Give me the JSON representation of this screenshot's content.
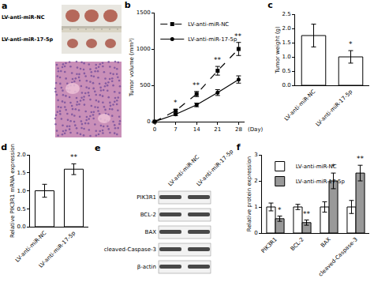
{
  "chart_data": [
    {
      "title": "b",
      "type": "line",
      "x": [
        0,
        7,
        14,
        21,
        28
      ],
      "xlabel": "(Day)",
      "ylabel": "Tumor volume (mm³)",
      "xlim": [
        0,
        30
      ],
      "xticks": [
        0,
        7,
        14,
        21,
        28
      ],
      "ylim": [
        0,
        1500
      ],
      "yticks": [
        0,
        500,
        1000,
        1500
      ],
      "legend": "top left",
      "series": [
        {
          "name": "LV-anti-miR-NC",
          "color": "#000000",
          "line_style": "dash",
          "marker": "square",
          "values": [
            0,
            150,
            380,
            700,
            1000
          ],
          "errors": [
            0,
            20,
            35,
            60,
            90
          ]
        },
        {
          "name": "LV-anti-miR-17-5p",
          "color": "#000000",
          "line_style": "solid",
          "marker": "circle",
          "values": [
            0,
            100,
            230,
            400,
            580
          ],
          "errors": [
            0,
            15,
            25,
            40,
            50
          ]
        }
      ],
      "annotations": [
        {
          "x": 7,
          "text": "*"
        },
        {
          "x": 14,
          "text": "**"
        },
        {
          "x": 21,
          "text": "**"
        },
        {
          "x": 28,
          "text": "**"
        }
      ]
    },
    {
      "title": "c",
      "type": "bar",
      "categories": [
        "LV-anti-miR-NC",
        "LV-anti-miR-17-5p"
      ],
      "values": [
        1.75,
        1.0
      ],
      "errors": [
        0.4,
        0.22
      ],
      "color": "#ffffff",
      "ylabel": "Tumor weight (g)",
      "ylim": [
        0,
        2.5
      ],
      "yticks": [
        {
          "value": 0,
          "label": "0.0"
        },
        {
          "value": 0.5,
          "label": "0.5"
        },
        {
          "value": 1,
          "label": "1.0"
        },
        {
          "value": 1.5,
          "label": "1.5"
        },
        {
          "value": 2,
          "label": "2.0"
        },
        {
          "value": 2.5,
          "label": "2.5"
        }
      ],
      "annotations": [
        {
          "x": "LV-anti-miR-17-5p",
          "text": "*"
        }
      ]
    },
    {
      "title": "d",
      "type": "bar",
      "categories": [
        "LV-anti-miR-NC",
        "LV-anti-miR-17-5p"
      ],
      "values": [
        1.0,
        1.6
      ],
      "errors": [
        0.18,
        0.15
      ],
      "color": "#ffffff",
      "ylabel": "Relative PIK3R1 mRNA expression",
      "ylim": [
        0,
        2
      ],
      "yticks": [
        {
          "value": 0,
          "label": "0.0"
        },
        {
          "value": 0.5,
          "label": "0.5"
        },
        {
          "value": 1,
          "label": "1.0"
        },
        {
          "value": 1.5,
          "label": "1.5"
        },
        {
          "value": 2,
          "label": "2.0"
        }
      ],
      "annotations": [
        {
          "x": "LV-anti-miR-17-5p",
          "text": "**"
        }
      ]
    },
    {
      "title": "f",
      "type": "bar",
      "categories": [
        "PIK3R1",
        "BCL-2",
        "BAX",
        "cleaved-Caspase-3"
      ],
      "ylabel": "Relative protein expression",
      "ylim": [
        0,
        3
      ],
      "yticks": [
        0,
        1,
        2,
        3
      ],
      "legend": "top left",
      "series": [
        {
          "name": "LV-anti-miR-NC",
          "color": "#ffffff",
          "values": [
            1,
            1,
            1,
            1
          ],
          "errors": [
            0.15,
            0.1,
            0.2,
            0.25
          ]
        },
        {
          "name": "LV-anti-miR-17-5p",
          "color": "#999999",
          "values": [
            0.55,
            0.4,
            2.0,
            2.3
          ],
          "errors": [
            0.1,
            0.1,
            0.3,
            0.3
          ]
        }
      ],
      "annotations": [
        {
          "x": "PIK3R1",
          "series": "LV-anti-miR-17-5p",
          "text": "*"
        },
        {
          "x": "BCL-2",
          "series": "LV-anti-miR-17-5p",
          "text": "**"
        },
        {
          "x": "BAX",
          "series": "LV-anti-miR-17-5p",
          "text": "*"
        },
        {
          "x": "cleaved-Caspase-3",
          "series": "LV-anti-miR-17-5p",
          "text": "**"
        }
      ]
    }
  ],
  "photo": {
    "title": "a",
    "rows": [
      "LV-anti-miR-NC",
      "LV-anti-miR-17-5p"
    ]
  },
  "blot": {
    "title": "e",
    "columns": [
      "LV-anti-miR-NC",
      "LV-anti-miR-17-5p"
    ],
    "rows": [
      "PIK3R1",
      "BCL-2",
      "BAX",
      "cleaved-Caspase-3",
      "β-actin"
    ]
  }
}
